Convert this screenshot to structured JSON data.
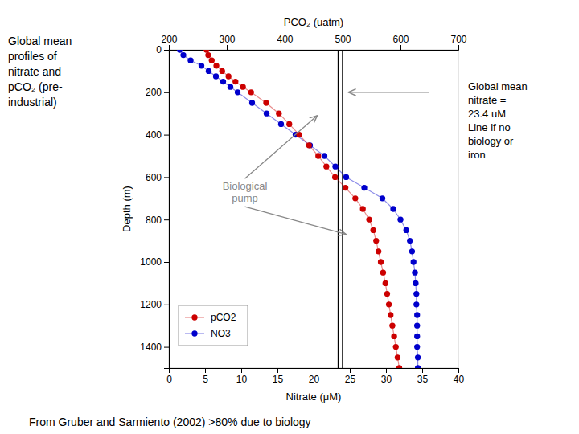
{
  "chart_data": {
    "type": "line",
    "x_label": "Nitrate (μM)",
    "x2_label": "PCO₂ (uatm)",
    "y_label": "Depth (m)",
    "side_note": "Global mean\nprofiles of\nnitrate and\npCO₂ (pre-\nindustrial)",
    "note": "Global mean\nnitrate =\n23.4 uM\nLine if no\nbiology or\niron",
    "source": "From Gruber and Sarmiento (2002) >80% due to biology",
    "y": [
      0,
      25,
      50,
      75,
      100,
      125,
      150,
      175,
      200,
      250,
      300,
      350,
      400,
      450,
      500,
      550,
      600,
      650,
      700,
      750,
      800,
      850,
      900,
      950,
      1000,
      1050,
      1100,
      1150,
      1200,
      1250,
      1300,
      1350,
      1400,
      1450,
      1500
    ],
    "series": [
      {
        "name": "NO3",
        "color": "#0000cc",
        "values": [
          1.5,
          2.0,
          3.0,
          4.5,
          5.5,
          6.5,
          7.5,
          8.5,
          9.5,
          11.5,
          13.5,
          15.5,
          17.5,
          19.5,
          21.5,
          23.0,
          24.5,
          27.0,
          29.5,
          31.0,
          32.0,
          32.8,
          33.3,
          33.6,
          33.8,
          34.0,
          34.1,
          34.2,
          34.2,
          34.3,
          34.3,
          34.3,
          34.3,
          34.4,
          34.4
        ]
      },
      {
        "name": "pCO2",
        "color": "#cc0000",
        "axis": "x2",
        "values": [
          265,
          268,
          274,
          282,
          292,
          303,
          315,
          328,
          342,
          368,
          390,
          408,
          425,
          442,
          458,
          472,
          487,
          505,
          522,
          535,
          546,
          553,
          558,
          562,
          566,
          570,
          574,
          577,
          580,
          583,
          586,
          589,
          592,
          595,
          598
        ]
      }
    ],
    "marker": "circle",
    "xlim": [
      0,
      40
    ],
    "xticks": [
      0,
      5,
      10,
      15,
      20,
      25,
      30,
      35,
      40
    ],
    "x2lim": [
      200,
      700
    ],
    "x2ticks": [
      200,
      300,
      400,
      500,
      600,
      700
    ],
    "ylim": [
      1500,
      0
    ],
    "yticks": [
      0,
      200,
      400,
      600,
      800,
      1000,
      1200,
      1400
    ],
    "ref_lines": [
      {
        "axis": "x",
        "value": 23.4,
        "color": "#000000"
      },
      {
        "axis": "x2",
        "value": 500,
        "color": "#000000"
      }
    ],
    "annotations": [
      {
        "text": "Biological\npump",
        "x": 10.5,
        "y": 660,
        "color": "#888888",
        "arrows": [
          {
            "x": 20.5,
            "y": 310
          },
          {
            "x": 24.5,
            "y": 870
          }
        ]
      }
    ],
    "arrows": [
      {
        "axis": "x2",
        "x_from": 650,
        "x": 510,
        "y": 200,
        "color": "#888888"
      }
    ],
    "legend": "lower left",
    "grid": false
  }
}
